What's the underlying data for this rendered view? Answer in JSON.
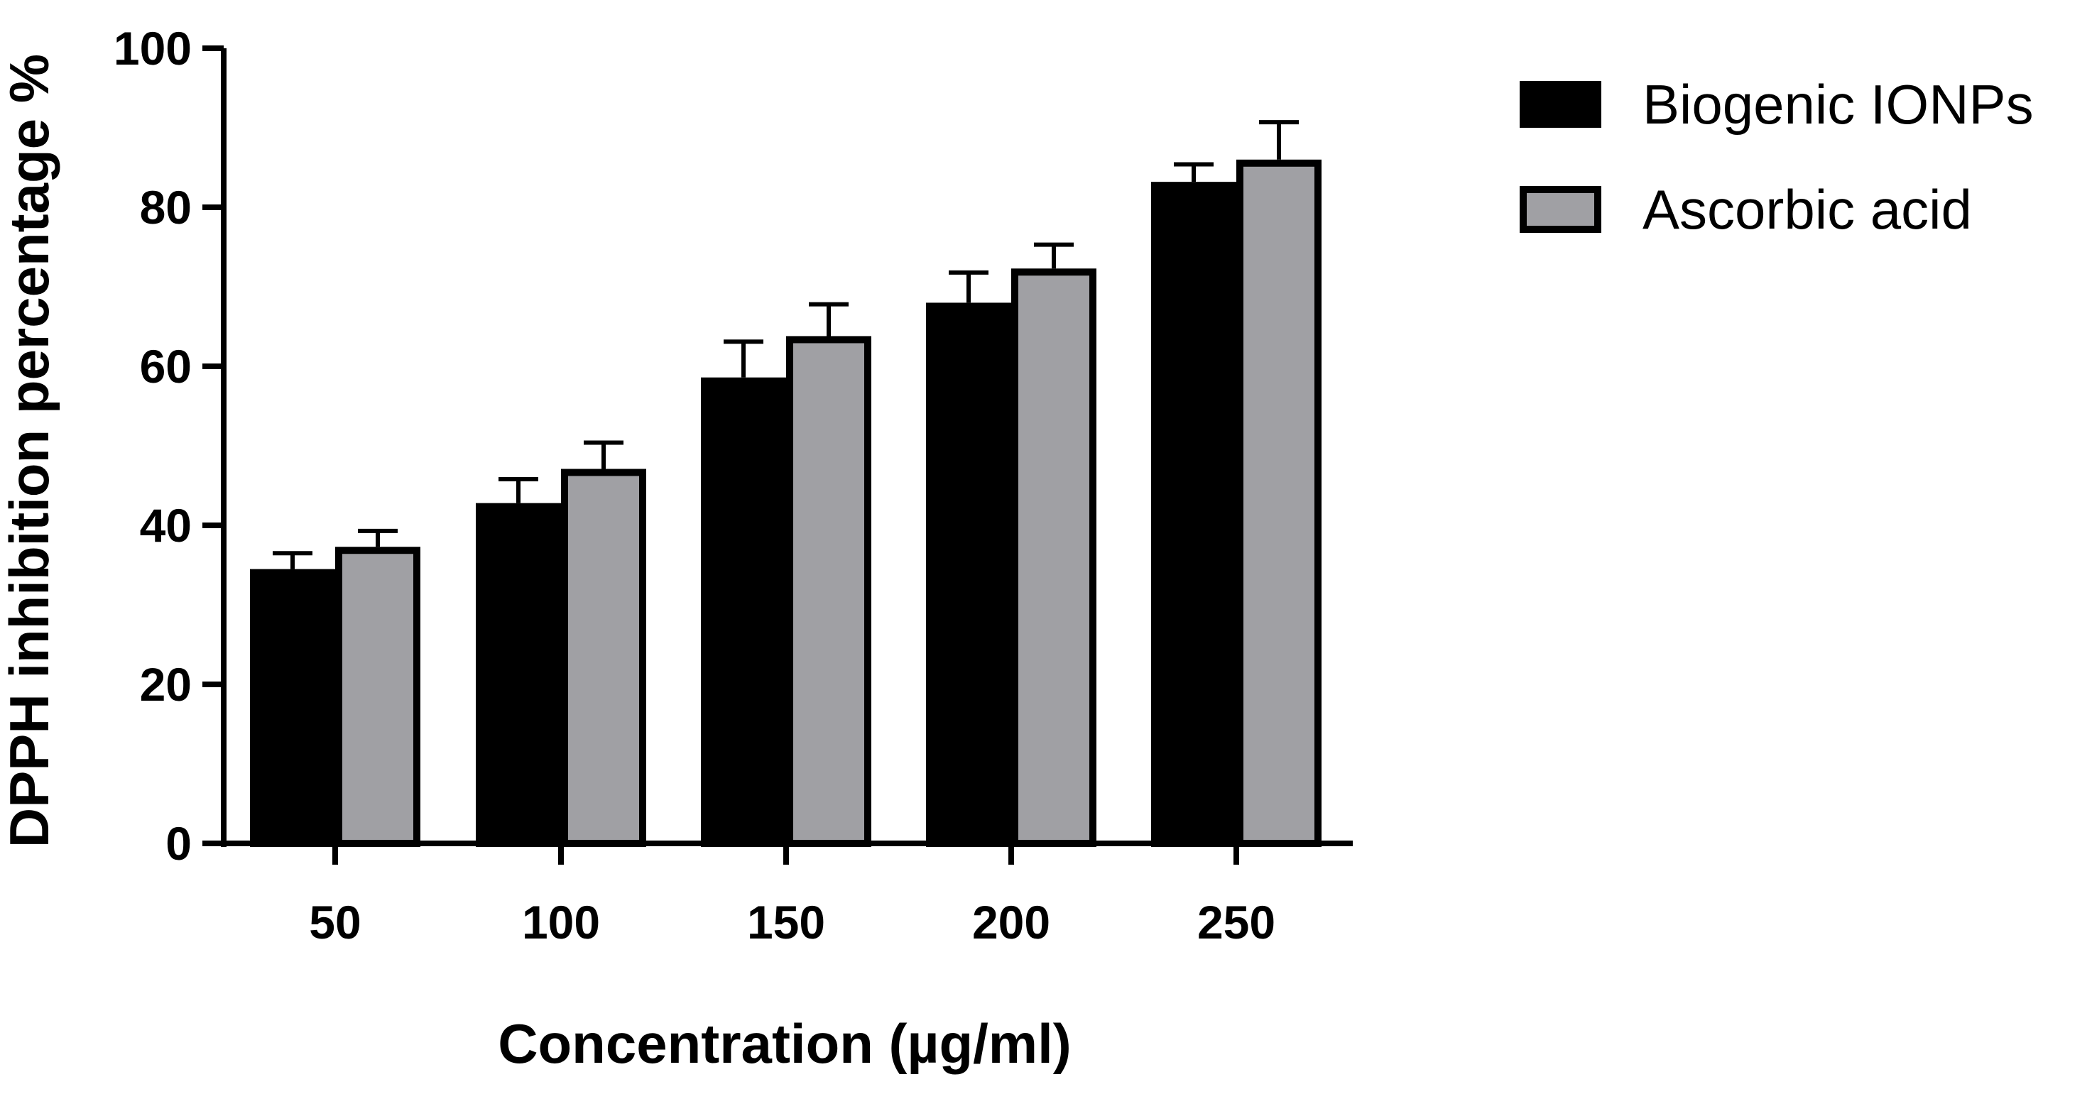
{
  "chart_data": {
    "type": "bar",
    "title": "",
    "xlabel": "Concentration (µg/ml)",
    "ylabel": "DPPH inhibition percentage %",
    "ylim": [
      0,
      100
    ],
    "yticks": [
      0,
      20,
      40,
      60,
      80,
      100
    ],
    "categories": [
      "50",
      "100",
      "150",
      "200",
      "250"
    ],
    "series": [
      {
        "name": "Biogenic IONPs",
        "color": "#000000",
        "values": [
          34.5,
          42.8,
          58.6,
          68.0,
          83.2
        ],
        "errors": [
          2.0,
          3.0,
          4.5,
          3.8,
          2.2
        ]
      },
      {
        "name": "Ascorbic acid",
        "color": "#a0a0a4",
        "values": [
          37.3,
          47.1,
          63.8,
          72.3,
          86.0
        ],
        "errors": [
          2.0,
          3.3,
          4.0,
          3.0,
          4.7
        ]
      }
    ],
    "legend_position": "right",
    "grid": false
  }
}
